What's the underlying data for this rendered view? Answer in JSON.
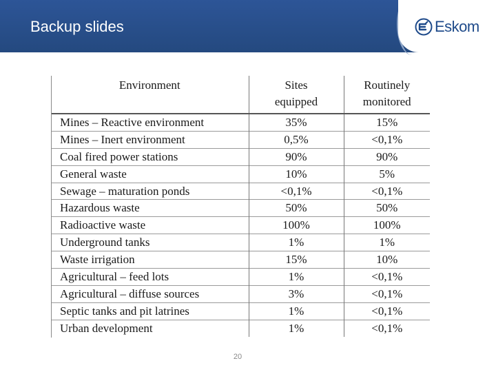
{
  "header": {
    "title": "Backup slides",
    "logo_text": "Eskom",
    "logo_icon": "eskom-logo-icon"
  },
  "table": {
    "columns": [
      "Environment",
      "Sites equipped",
      "Routinely monitored"
    ],
    "header_lines": [
      [
        "Environment"
      ],
      [
        "Sites",
        "equipped"
      ],
      [
        "Routinely",
        "monitored"
      ]
    ],
    "rows": [
      [
        "Mines – Reactive environment",
        "35%",
        "15%"
      ],
      [
        "Mines – Inert environment",
        "0,5%",
        "<0,1%"
      ],
      [
        "Coal fired power stations",
        "90%",
        "90%"
      ],
      [
        "General waste",
        "10%",
        "5%"
      ],
      [
        "Sewage – maturation ponds",
        "<0,1%",
        "<0,1%"
      ],
      [
        "Hazardous waste",
        "50%",
        "50%"
      ],
      [
        "Radioactive waste",
        "100%",
        "100%"
      ],
      [
        "Underground tanks",
        "1%",
        "1%"
      ],
      [
        "Waste irrigation",
        "15%",
        "10%"
      ],
      [
        "Agricultural – feed lots",
        "1%",
        "<0,1%"
      ],
      [
        "Agricultural – diffuse sources",
        "3%",
        "<0,1%"
      ],
      [
        "Septic tanks and pit latrines",
        "1%",
        "<0,1%"
      ],
      [
        "Urban development",
        "1%",
        "<0,1%"
      ]
    ]
  },
  "footer": {
    "page_number": "20"
  },
  "colors": {
    "header_bg": "#2d5597",
    "logo_blue": "#1e4a8a"
  }
}
